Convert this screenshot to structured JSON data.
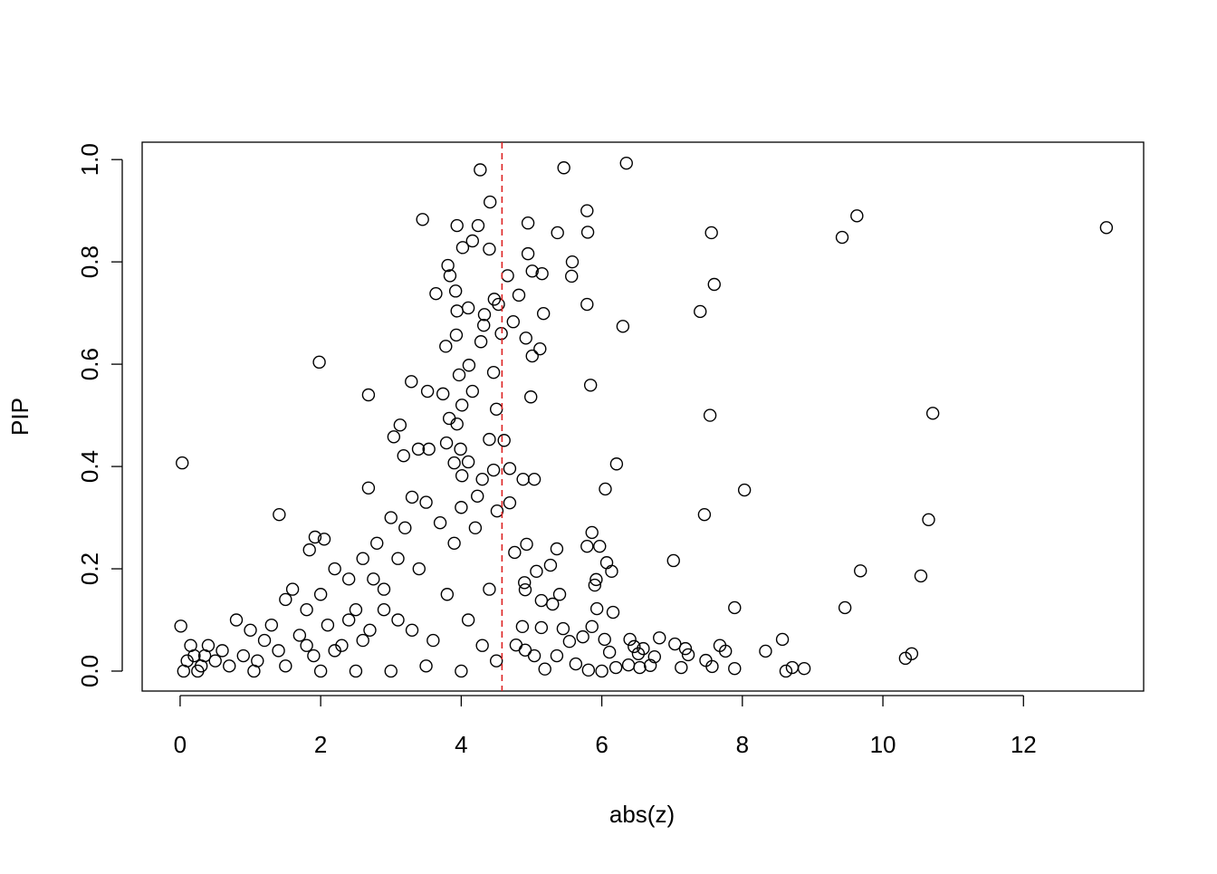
{
  "chart_data": {
    "type": "scatter",
    "xlabel": "abs(z)",
    "ylabel": "PIP",
    "marker_color": "#000000",
    "vline": {
      "x": 4.58,
      "color": "#dd2222",
      "dash": true
    },
    "xlim": [
      -0.54,
      13.71
    ],
    "ylim": [
      -0.039,
      1.034
    ],
    "xticks": [
      0,
      2,
      4,
      6,
      8,
      10,
      12
    ],
    "yticks": [
      {
        "value": 0,
        "label": "0.0"
      },
      0.2,
      0.4,
      0.6,
      0.8,
      {
        "value": 1,
        "label": "1.0"
      }
    ],
    "x": [
      13.18,
      9.63,
      9.42,
      10.71,
      10.65,
      9.68,
      10.54,
      9.46,
      10.41,
      10.32,
      6.35,
      5.46,
      4.27,
      7.56,
      7.6,
      7.4,
      7.54,
      8.03,
      7.46,
      7.02,
      7.89,
      8.57,
      8.33,
      8.88,
      8.62,
      8.71,
      7.89,
      7.68,
      7.76,
      7.23,
      6.82,
      7.04,
      7.19,
      7.13,
      7.57,
      7.48,
      6.3,
      5.79,
      5.8,
      5.58,
      5.57,
      5.79,
      5.84,
      6.21,
      6.05,
      5.86,
      5.79,
      5.97,
      6.07,
      6.14,
      5.92,
      5.9,
      5.93,
      6.16,
      5.86,
      5.73,
      6.04,
      6.11,
      6.4,
      6.46,
      6.52,
      6.59,
      6.75,
      6.69,
      6.54,
      6.38,
      6.2,
      6,
      5.81,
      5.63,
      5.36,
      5.19,
      5.37,
      4.95,
      4.95,
      5.01,
      5.15,
      4.66,
      4.47,
      4.82,
      4.53,
      4.74,
      5.17,
      4.92,
      5.01,
      5.12,
      4.99,
      4.57,
      4.69,
      5.04,
      4.88,
      4.69,
      4.93,
      5.36,
      4.76,
      5.07,
      5.27,
      4.9,
      4.91,
      5.3,
      5.4,
      5.14,
      5.14,
      4.87,
      5.45,
      5.54,
      4.78,
      4.91,
      5.04,
      3.45,
      4.41,
      3.94,
      4.24,
      4.02,
      4.4,
      4.16,
      3.81,
      3.84,
      3.64,
      3.92,
      4.1,
      3.94,
      4.33,
      4.32,
      3.93,
      3.78,
      4.28,
      4.11,
      3.97,
      4.46,
      1.98,
      3.29,
      3.52,
      3.74,
      4.16,
      2.68,
      4.01,
      3.83,
      3.94,
      3.13,
      4.5,
      3.04,
      4.4,
      4.61,
      3.79,
      3.99,
      3.54,
      3.39,
      3.18,
      4.1,
      3.9,
      0.03,
      4.46,
      4.3,
      4.01,
      2.68,
      4.23,
      4.51,
      1.41,
      1.92,
      2.05,
      1.84,
      0.01,
      0.1,
      0.2,
      0.3,
      0.4,
      0.5,
      0.6,
      0.8,
      0.9,
      1.0,
      1.1,
      1.2,
      1.3,
      1.4,
      1.5,
      1.6,
      1.7,
      1.8,
      1.9,
      2.0,
      2.1,
      2.2,
      2.3,
      2.4,
      2.5,
      2.6,
      2.7,
      2.8,
      2.9,
      3.0,
      3.1,
      3.2,
      3.3,
      3.4,
      3.5,
      3.6,
      3.7,
      3.8,
      3.9,
      4.0,
      4.1,
      4.2,
      4.3,
      4.4,
      4.5,
      0.05,
      0.25,
      0.7,
      1.05,
      1.5,
      2.0,
      2.5,
      3.0,
      3.5,
      4.0,
      2.2,
      2.6,
      2.9,
      3.3,
      2.4,
      1.8,
      0.15,
      0.35,
      2.75,
      3.1
    ],
    "values": [
      0.867,
      0.89,
      0.848,
      0.504,
      0.296,
      0.196,
      0.186,
      0.124,
      0.034,
      0.025,
      0.993,
      0.984,
      0.98,
      0.857,
      0.756,
      0.703,
      0.5,
      0.354,
      0.306,
      0.216,
      0.124,
      0.062,
      0.039,
      0.005,
      0,
      0.007,
      0.005,
      0.05,
      0.039,
      0.032,
      0.065,
      0.053,
      0.044,
      0.007,
      0.009,
      0.021,
      0.674,
      0.9,
      0.858,
      0.8,
      0.772,
      0.717,
      0.559,
      0.405,
      0.356,
      0.271,
      0.244,
      0.244,
      0.212,
      0.195,
      0.179,
      0.168,
      0.122,
      0.115,
      0.087,
      0.067,
      0.062,
      0.037,
      0.062,
      0.048,
      0.034,
      0.044,
      0.028,
      0.011,
      0.007,
      0.012,
      0.007,
      0,
      0.002,
      0.014,
      0.03,
      0.004,
      0.857,
      0.876,
      0.816,
      0.782,
      0.777,
      0.773,
      0.727,
      0.735,
      0.717,
      0.683,
      0.699,
      0.651,
      0.616,
      0.63,
      0.536,
      0.66,
      0.396,
      0.375,
      0.375,
      0.329,
      0.248,
      0.239,
      0.232,
      0.195,
      0.207,
      0.173,
      0.159,
      0.131,
      0.15,
      0.138,
      0.085,
      0.087,
      0.083,
      0.058,
      0.051,
      0.041,
      0.03,
      0.883,
      0.917,
      0.871,
      0.871,
      0.828,
      0.825,
      0.841,
      0.793,
      0.773,
      0.738,
      0.743,
      0.71,
      0.704,
      0.697,
      0.676,
      0.657,
      0.635,
      0.644,
      0.598,
      0.579,
      0.584,
      0.604,
      0.566,
      0.547,
      0.542,
      0.547,
      0.54,
      0.52,
      0.494,
      0.483,
      0.481,
      0.512,
      0.458,
      0.453,
      0.451,
      0.446,
      0.434,
      0.434,
      0.434,
      0.421,
      0.409,
      0.407,
      0.407,
      0.393,
      0.375,
      0.382,
      0.358,
      0.342,
      0.313,
      0.306,
      0.262,
      0.258,
      0.237,
      0.088,
      0.02,
      0.03,
      0.01,
      0.05,
      0.02,
      0.04,
      0.1,
      0.03,
      0.08,
      0.02,
      0.06,
      0.09,
      0.04,
      0.14,
      0.16,
      0.07,
      0.12,
      0.03,
      0.15,
      0.09,
      0.2,
      0.05,
      0.18,
      0.12,
      0.22,
      0.08,
      0.25,
      0.16,
      0.3,
      0.1,
      0.28,
      0.34,
      0.2,
      0.33,
      0.06,
      0.29,
      0.15,
      0.25,
      0.32,
      0.1,
      0.28,
      0.05,
      0.16,
      0.02,
      0.0,
      0.0,
      0.01,
      0.0,
      0.01,
      0.0,
      0.0,
      0.0,
      0.01,
      0.0,
      0.04,
      0.06,
      0.12,
      0.08,
      0.1,
      0.05,
      0.05,
      0.03,
      0.18,
      0.22
    ]
  }
}
